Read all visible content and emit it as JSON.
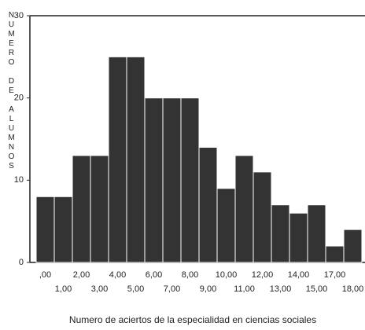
{
  "chart_data": {
    "type": "bar",
    "x_label": "Numero de aciertos de la especialidad en ciencias sociales",
    "y_label": "NUMERO DE ALUMNOS",
    "categories": [
      ",00",
      "1,00",
      "2,00",
      "3,00",
      "4,00",
      "5,00",
      "6,00",
      "7,00",
      "8,00",
      "9,00",
      "10,00",
      "11,00",
      "12,00",
      "13,00",
      "14,00",
      "15,00",
      "17,00",
      "18,00"
    ],
    "values": [
      8,
      8,
      13,
      13,
      25,
      25,
      20,
      20,
      20,
      14,
      9,
      13,
      11,
      7,
      6,
      7,
      2,
      4
    ],
    "color": "#333333",
    "ylim": [
      0,
      30
    ],
    "yticks": [
      0,
      10,
      20,
      30
    ]
  }
}
